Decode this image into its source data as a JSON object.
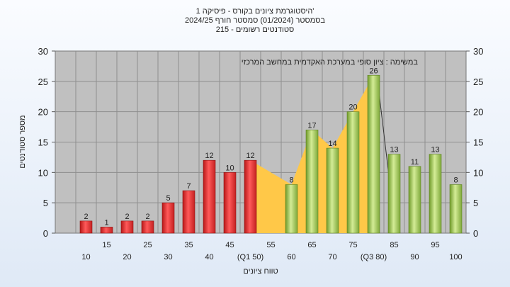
{
  "chart_data": {
    "type": "bar",
    "title_lines": [
      "היסטוגרמת ציונים בקורס - פיסיקה 1'",
      "בסמסטר  (01/2024)  סמסטר חורף 2024/25",
      "סטודנטים רשומים - 215"
    ],
    "annotation": "במשימה : ציון סופי במערכת האקדמית במחשב המרכזי",
    "xlabel": "טווח ציונים",
    "ylabel": "מספר סטודנטים",
    "ylim": [
      0,
      30
    ],
    "yticks": [
      0,
      5,
      10,
      15,
      20,
      25,
      30
    ],
    "grid": true,
    "categories": [
      "10",
      "15",
      "20",
      "25",
      "30",
      "35",
      "40",
      "45",
      "50",
      "55",
      "60",
      "65",
      "70",
      "75",
      "80",
      "85",
      "90",
      "95",
      "100"
    ],
    "tick_labels": [
      "10",
      "15",
      "20",
      "25",
      "30",
      "35",
      "40",
      "45",
      "(Q1 50)",
      "55",
      "60",
      "65",
      "70",
      "75",
      "(Q3 80)",
      "85",
      "90",
      "95",
      "100"
    ],
    "values": [
      2,
      1,
      2,
      2,
      5,
      7,
      12,
      10,
      12,
      0,
      8,
      17,
      14,
      20,
      26,
      13,
      11,
      13,
      8
    ],
    "value_labels": [
      "2",
      "1",
      "2",
      "2",
      "5",
      "7",
      "12",
      "10",
      "12",
      "",
      "8",
      "17",
      "14",
      "20",
      "26",
      "13",
      "11",
      "13",
      "8"
    ],
    "fail_threshold": 55,
    "colors": {
      "fail": "#e83a3a",
      "pass": "#a3cc5a",
      "iqr_area": "#ffc848",
      "plot_bg": "#c0c0c0",
      "grid": "#8e8e8e"
    }
  }
}
